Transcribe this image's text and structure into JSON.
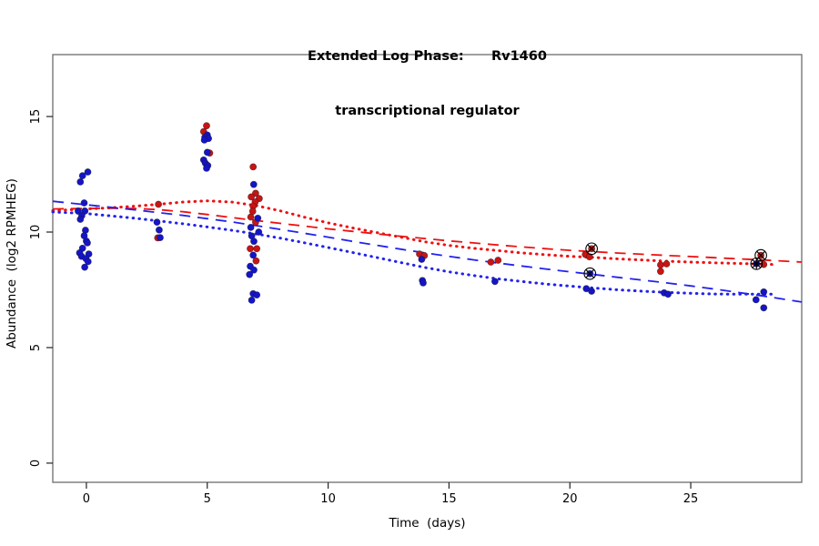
{
  "chart_data": {
    "type": "scatter",
    "title": "Extended Log Phase:      Rv1460",
    "subtitle": "transcriptional regulator",
    "xlabel": "Time  (days)",
    "ylabel": "Abundance  (log2 RPMHEG)",
    "xlim": [
      -1.39,
      29.59
    ],
    "ylim": [
      -0.83,
      17.68
    ],
    "xticks": [
      0,
      5,
      10,
      15,
      20,
      25
    ],
    "yticks": [
      0,
      5,
      10,
      15
    ],
    "grid": false,
    "legend": "none",
    "colors": {
      "red_point_fill": "#c81414",
      "blue_point_fill": "#1414c8",
      "point_outline": "#1a1a1a",
      "red_line": "#ee1111",
      "blue_line": "#2222ee",
      "box": "#777777",
      "tick": "#222222",
      "marker_outline": "#000000"
    },
    "series": [
      {
        "name": "red-points",
        "color_key": "red_point_fill",
        "points": [
          [
            2.98,
            11.2
          ],
          [
            2.95,
            9.75
          ],
          [
            4.97,
            14.6
          ],
          [
            4.85,
            14.35
          ],
          [
            5.1,
            13.42
          ],
          [
            6.9,
            12.82
          ],
          [
            7.0,
            11.68
          ],
          [
            6.82,
            11.52
          ],
          [
            7.15,
            11.45
          ],
          [
            6.98,
            11.3
          ],
          [
            6.9,
            11.12
          ],
          [
            6.88,
            10.9
          ],
          [
            6.8,
            10.65
          ],
          [
            7.0,
            10.42
          ],
          [
            6.78,
            9.28
          ],
          [
            7.05,
            9.28
          ],
          [
            7.02,
            8.75
          ],
          [
            13.78,
            9.05
          ],
          [
            13.98,
            8.98
          ],
          [
            16.73,
            8.7
          ],
          [
            17.03,
            8.78
          ],
          [
            20.64,
            9.03
          ],
          [
            20.81,
            8.93
          ],
          [
            23.75,
            8.58
          ],
          [
            24.0,
            8.62
          ],
          [
            23.75,
            8.3
          ],
          [
            28.02,
            8.6
          ]
        ]
      },
      {
        "name": "blue-points",
        "color_key": "blue_point_fill",
        "points": [
          [
            0.06,
            12.6
          ],
          [
            -0.16,
            12.44
          ],
          [
            -0.25,
            12.17
          ],
          [
            -0.09,
            11.26
          ],
          [
            -0.34,
            10.91
          ],
          [
            -0.06,
            10.91
          ],
          [
            -0.19,
            10.71
          ],
          [
            -0.25,
            10.55
          ],
          [
            -0.04,
            10.08
          ],
          [
            -0.09,
            9.84
          ],
          [
            0.0,
            9.61
          ],
          [
            0.04,
            9.53
          ],
          [
            -0.16,
            9.3
          ],
          [
            -0.28,
            9.1
          ],
          [
            0.1,
            9.05
          ],
          [
            -0.2,
            8.95
          ],
          [
            -0.02,
            8.85
          ],
          [
            0.07,
            8.72
          ],
          [
            -0.07,
            8.48
          ],
          [
            2.92,
            10.43
          ],
          [
            3.01,
            10.09
          ],
          [
            3.05,
            9.76
          ],
          [
            5.0,
            14.2
          ],
          [
            4.9,
            14.1
          ],
          [
            5.05,
            14.05
          ],
          [
            4.88,
            13.98
          ],
          [
            5.0,
            13.45
          ],
          [
            4.85,
            13.12
          ],
          [
            4.92,
            12.98
          ],
          [
            5.02,
            12.88
          ],
          [
            4.97,
            12.76
          ],
          [
            6.92,
            12.06
          ],
          [
            7.09,
            10.6
          ],
          [
            6.8,
            10.2
          ],
          [
            7.13,
            10.0
          ],
          [
            6.84,
            9.83
          ],
          [
            6.93,
            9.6
          ],
          [
            6.9,
            9.0
          ],
          [
            6.78,
            8.52
          ],
          [
            6.93,
            8.36
          ],
          [
            6.75,
            8.16
          ],
          [
            6.9,
            7.33
          ],
          [
            7.05,
            7.28
          ],
          [
            6.84,
            7.05
          ],
          [
            13.87,
            8.82
          ],
          [
            13.9,
            7.9
          ],
          [
            13.93,
            7.8
          ],
          [
            16.9,
            7.86
          ],
          [
            20.68,
            7.55
          ],
          [
            20.9,
            7.44
          ],
          [
            23.9,
            7.37
          ],
          [
            24.06,
            7.31
          ],
          [
            28.02,
            7.41
          ],
          [
            27.7,
            7.07
          ],
          [
            28.02,
            6.72
          ]
        ]
      }
    ],
    "marked_points": [
      {
        "x": 20.9,
        "y": 9.28,
        "series": "red",
        "glyph": "circle-cross"
      },
      {
        "x": 20.83,
        "y": 8.2,
        "series": "blue",
        "glyph": "circle-cross"
      },
      {
        "x": 27.9,
        "y": 8.99,
        "series": "red",
        "glyph": "circle-cross"
      },
      {
        "x": 27.72,
        "y": 8.63,
        "series": "blue",
        "glyph": "circle-star"
      }
    ],
    "trend_lines": [
      {
        "name": "red-dotted-fit",
        "style": "dotted",
        "color_key": "red_line",
        "points": [
          [
            -1.39,
            10.93
          ],
          [
            0,
            11.0
          ],
          [
            1,
            11.05
          ],
          [
            2,
            11.12
          ],
          [
            3,
            11.2
          ],
          [
            4,
            11.3
          ],
          [
            5,
            11.35
          ],
          [
            6,
            11.3
          ],
          [
            7,
            11.15
          ],
          [
            8,
            10.92
          ],
          [
            9,
            10.65
          ],
          [
            10,
            10.4
          ],
          [
            11,
            10.18
          ],
          [
            12,
            9.98
          ],
          [
            13,
            9.78
          ],
          [
            14,
            9.58
          ],
          [
            15,
            9.42
          ],
          [
            16,
            9.3
          ],
          [
            17,
            9.2
          ],
          [
            18,
            9.1
          ],
          [
            19,
            9.02
          ],
          [
            20,
            8.95
          ],
          [
            21,
            8.9
          ],
          [
            22,
            8.84
          ],
          [
            23,
            8.79
          ],
          [
            24,
            8.74
          ],
          [
            25,
            8.7
          ],
          [
            26,
            8.67
          ],
          [
            27,
            8.64
          ],
          [
            28.4,
            8.6
          ]
        ]
      },
      {
        "name": "red-dashed-fit",
        "style": "dashed",
        "color_key": "red_line",
        "points": [
          [
            -1.39,
            11.0
          ],
          [
            0,
            11.02
          ],
          [
            1,
            11.03
          ],
          [
            2,
            11.02
          ],
          [
            3,
            10.97
          ],
          [
            4,
            10.88
          ],
          [
            5,
            10.76
          ],
          [
            6,
            10.63
          ],
          [
            7,
            10.5
          ],
          [
            8,
            10.38
          ],
          [
            9,
            10.26
          ],
          [
            10,
            10.14
          ],
          [
            11,
            10.03
          ],
          [
            12,
            9.92
          ],
          [
            13,
            9.82
          ],
          [
            14,
            9.72
          ],
          [
            15,
            9.62
          ],
          [
            16,
            9.53
          ],
          [
            17,
            9.44
          ],
          [
            18,
            9.36
          ],
          [
            19,
            9.28
          ],
          [
            20,
            9.21
          ],
          [
            21,
            9.15
          ],
          [
            22,
            9.09
          ],
          [
            23,
            9.04
          ],
          [
            24,
            8.99
          ],
          [
            25,
            8.94
          ],
          [
            26,
            8.89
          ],
          [
            27,
            8.84
          ],
          [
            28,
            8.79
          ],
          [
            29.59,
            8.7
          ]
        ]
      },
      {
        "name": "blue-dotted-fit",
        "style": "dotted",
        "color_key": "blue_line",
        "points": [
          [
            -1.39,
            10.87
          ],
          [
            0,
            10.8
          ],
          [
            1,
            10.7
          ],
          [
            2,
            10.6
          ],
          [
            3,
            10.48
          ],
          [
            4,
            10.36
          ],
          [
            5,
            10.22
          ],
          [
            6,
            10.08
          ],
          [
            7,
            9.92
          ],
          [
            8,
            9.74
          ],
          [
            9,
            9.54
          ],
          [
            10,
            9.33
          ],
          [
            11,
            9.12
          ],
          [
            12,
            8.9
          ],
          [
            13,
            8.68
          ],
          [
            14,
            8.47
          ],
          [
            15,
            8.28
          ],
          [
            16,
            8.12
          ],
          [
            17,
            7.98
          ],
          [
            18,
            7.86
          ],
          [
            19,
            7.75
          ],
          [
            20,
            7.66
          ],
          [
            21,
            7.58
          ],
          [
            22,
            7.5
          ],
          [
            23,
            7.44
          ],
          [
            24,
            7.39
          ],
          [
            25,
            7.35
          ],
          [
            26,
            7.32
          ],
          [
            27,
            7.31
          ],
          [
            28.4,
            7.31
          ]
        ]
      },
      {
        "name": "blue-dashed-fit",
        "style": "dashed",
        "color_key": "blue_line",
        "points": [
          [
            -1.39,
            11.33
          ],
          [
            0,
            11.18
          ],
          [
            1,
            11.07
          ],
          [
            2,
            10.96
          ],
          [
            3,
            10.84
          ],
          [
            4,
            10.72
          ],
          [
            5,
            10.58
          ],
          [
            6,
            10.44
          ],
          [
            7,
            10.28
          ],
          [
            8,
            10.12
          ],
          [
            9,
            9.95
          ],
          [
            10,
            9.78
          ],
          [
            11,
            9.6
          ],
          [
            12,
            9.43
          ],
          [
            13,
            9.26
          ],
          [
            14,
            9.1
          ],
          [
            15,
            8.95
          ],
          [
            16,
            8.8
          ],
          [
            17,
            8.66
          ],
          [
            18,
            8.53
          ],
          [
            19,
            8.4
          ],
          [
            20,
            8.28
          ],
          [
            21,
            8.16
          ],
          [
            22,
            8.04
          ],
          [
            23,
            7.92
          ],
          [
            24,
            7.8
          ],
          [
            25,
            7.67
          ],
          [
            26,
            7.53
          ],
          [
            27,
            7.38
          ],
          [
            28,
            7.23
          ],
          [
            29,
            7.07
          ],
          [
            29.59,
            6.97
          ]
        ]
      }
    ]
  }
}
